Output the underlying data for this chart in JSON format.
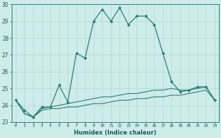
{
  "xlabel": "Humidex (Indice chaleur)",
  "x": [
    0,
    1,
    2,
    3,
    4,
    5,
    6,
    7,
    8,
    9,
    10,
    11,
    12,
    13,
    14,
    15,
    16,
    17,
    18,
    19,
    20,
    21,
    22,
    23
  ],
  "line1": [
    24.3,
    23.7,
    23.3,
    23.9,
    23.9,
    25.2,
    24.2,
    27.1,
    26.8,
    29.0,
    29.7,
    29.0,
    29.8,
    28.8,
    29.3,
    29.3,
    28.8,
    27.1,
    25.4,
    24.8,
    24.9,
    25.1,
    25.1,
    24.3
  ],
  "line2": [
    24.3,
    23.5,
    23.3,
    23.8,
    23.9,
    24.0,
    24.1,
    24.2,
    24.3,
    24.4,
    24.5,
    24.5,
    24.6,
    24.7,
    24.7,
    24.8,
    24.9,
    24.9,
    25.0,
    24.9,
    24.9,
    25.0,
    25.1,
    24.3
  ],
  "line3": [
    24.3,
    23.5,
    23.3,
    23.7,
    23.8,
    23.8,
    23.9,
    23.9,
    24.0,
    24.1,
    24.1,
    24.2,
    24.3,
    24.3,
    24.4,
    24.4,
    24.5,
    24.5,
    24.6,
    24.6,
    24.7,
    24.8,
    24.9,
    24.3
  ],
  "line_color": "#2d7d6e",
  "bg_color": "#ceecea",
  "grid_color": "#aed8d4",
  "ylim": [
    23,
    30
  ],
  "yticks": [
    23,
    24,
    25,
    26,
    27,
    28,
    29,
    30
  ]
}
